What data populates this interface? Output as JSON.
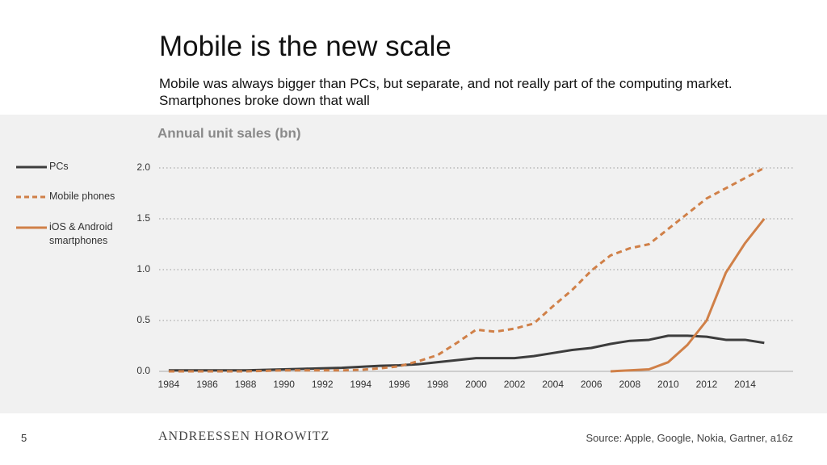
{
  "title": "Mobile is the new scale",
  "subtitle": "Mobile was always bigger than PCs, but separate, and not really part of the computing market. Smartphones broke down that wall",
  "slide_number": "5",
  "brand": "ANDREESSEN HOROWITZ",
  "source": "Source: Apple, Google, Nokia, Gartner, a16z",
  "chart_data": {
    "type": "line",
    "title": "Annual unit sales (bn)",
    "x": [
      1984,
      1985,
      1986,
      1987,
      1988,
      1989,
      1990,
      1991,
      1992,
      1993,
      1994,
      1995,
      1996,
      1997,
      1998,
      1999,
      2000,
      2001,
      2002,
      2003,
      2004,
      2005,
      2006,
      2007,
      2008,
      2009,
      2010,
      2011,
      2012,
      2013,
      2014,
      2015
    ],
    "series": [
      {
        "name": "PCs",
        "color": "#3d3d3d",
        "dashed": false,
        "values": [
          0.01,
          0.01,
          0.01,
          0.01,
          0.01,
          0.015,
          0.02,
          0.025,
          0.03,
          0.035,
          0.045,
          0.055,
          0.06,
          0.07,
          0.09,
          0.11,
          0.13,
          0.13,
          0.13,
          0.15,
          0.18,
          0.21,
          0.23,
          0.27,
          0.3,
          0.31,
          0.35,
          0.35,
          0.34,
          0.31,
          0.31,
          0.28
        ]
      },
      {
        "name": "Mobile phones",
        "color": "#d08048",
        "dashed": true,
        "values": [
          0,
          0,
          0,
          0,
          0,
          0.005,
          0.01,
          0.01,
          0.01,
          0.01,
          0.015,
          0.03,
          0.05,
          0.1,
          0.16,
          0.28,
          0.41,
          0.39,
          0.42,
          0.47,
          0.64,
          0.8,
          0.99,
          1.14,
          1.21,
          1.25,
          1.4,
          1.55,
          1.7,
          1.8,
          1.9,
          2.0
        ]
      },
      {
        "name": "iOS & Android smartphones",
        "color": "#d08048",
        "dashed": false,
        "values": [
          null,
          null,
          null,
          null,
          null,
          null,
          null,
          null,
          null,
          null,
          null,
          null,
          null,
          null,
          null,
          null,
          null,
          null,
          null,
          null,
          null,
          null,
          null,
          0,
          0.01,
          0.02,
          0.09,
          0.26,
          0.5,
          0.97,
          1.26,
          1.5
        ]
      }
    ],
    "xlim": [
      1983.5,
      2016.5
    ],
    "xticks": [
      1984,
      1986,
      1988,
      1990,
      1992,
      1994,
      1996,
      1998,
      2000,
      2002,
      2004,
      2006,
      2008,
      2010,
      2012,
      2014
    ],
    "ylim": [
      0,
      2.0
    ],
    "yticks": [
      {
        "value": 0,
        "label": "0.0"
      },
      0.5,
      {
        "value": 1,
        "label": "1.0"
      },
      1.5,
      {
        "value": 2,
        "label": "2.0"
      }
    ],
    "grid": true
  }
}
